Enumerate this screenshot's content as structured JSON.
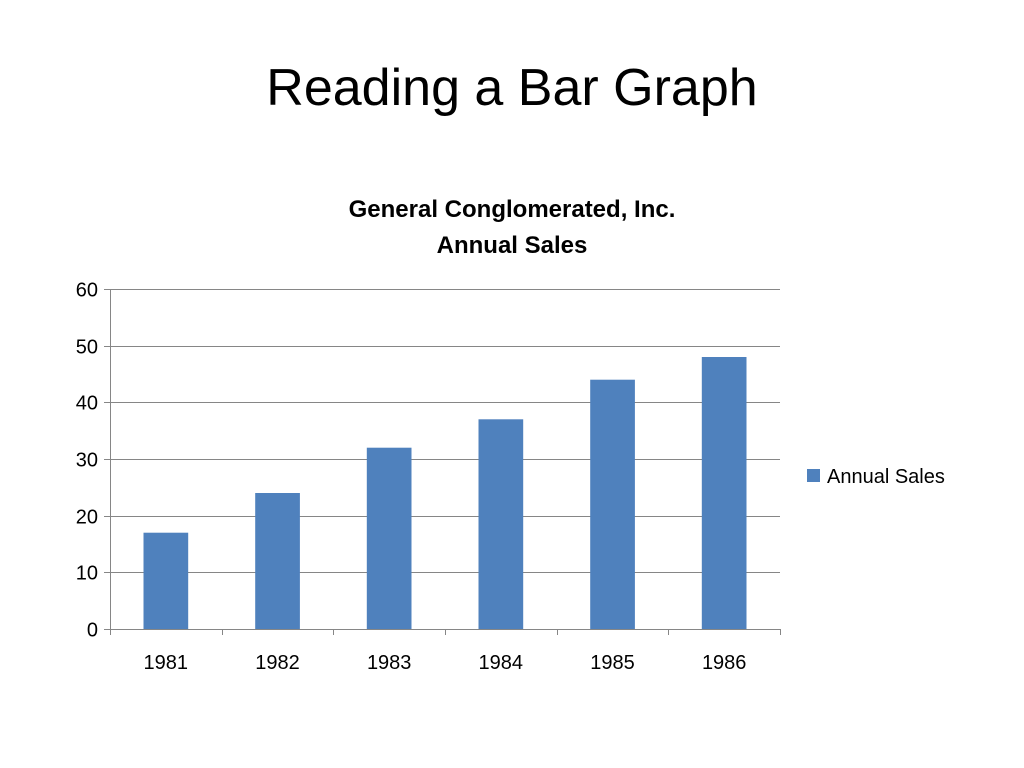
{
  "slide": {
    "title": "Reading a Bar Graph"
  },
  "chart_data": {
    "type": "bar",
    "title": "General Conglomerated, Inc.",
    "subtitle": "Annual Sales",
    "categories": [
      "1981",
      "1982",
      "1983",
      "1984",
      "1985",
      "1986"
    ],
    "series": [
      {
        "name": "Annual Sales",
        "values": [
          17,
          24,
          32,
          37,
          44,
          48
        ],
        "color": "#4F81BD"
      }
    ],
    "ylim": [
      0,
      60
    ],
    "yticks": [
      0,
      10,
      20,
      30,
      40,
      50,
      60
    ],
    "grid": true,
    "gridColor": "#868686",
    "legend": "right"
  }
}
